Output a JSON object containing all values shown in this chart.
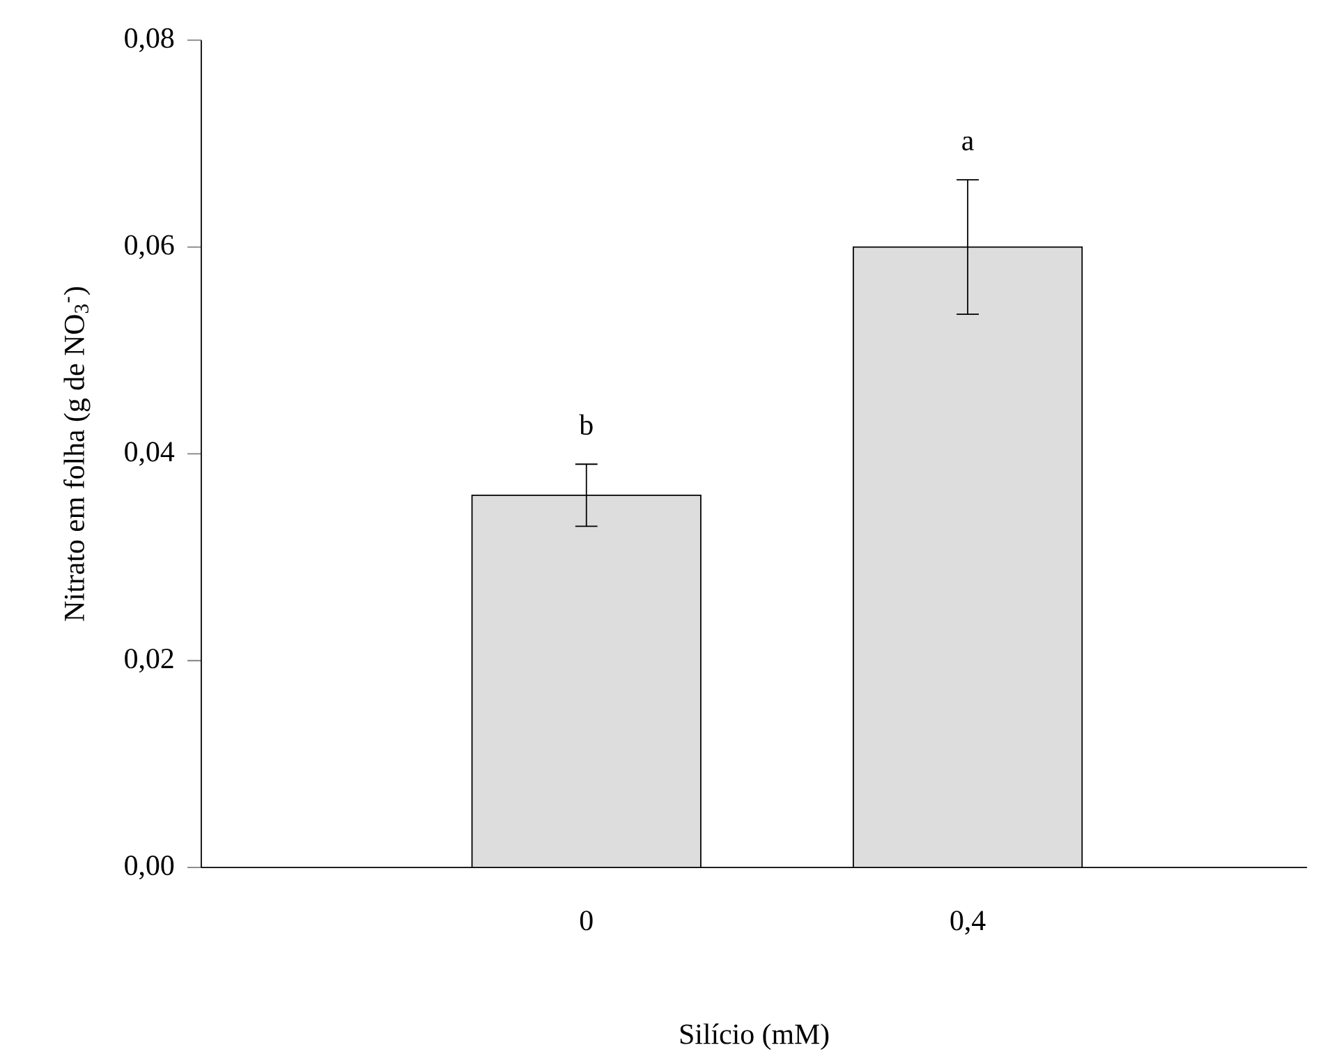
{
  "chart_data": {
    "type": "bar",
    "xlabel": "Silício (mM)",
    "ylabel": "Nitrato em folha (g de NO$_{3}$$^{-}$)",
    "categories": [
      "0",
      "0,4"
    ],
    "values": [
      0.036,
      0.06
    ],
    "errors": [
      0.003,
      0.0065
    ],
    "color": "#dddddd",
    "ylim": [
      0,
      0.08
    ],
    "yticks": [
      {
        "value": 0,
        "label": "0,00"
      },
      {
        "value": 0.02,
        "label": "0,02"
      },
      {
        "value": 0.04,
        "label": "0,04"
      },
      {
        "value": 0.06,
        "label": "0,06"
      },
      {
        "value": 0.08,
        "label": "0,08"
      }
    ],
    "annotations": [
      "b",
      "a"
    ]
  }
}
